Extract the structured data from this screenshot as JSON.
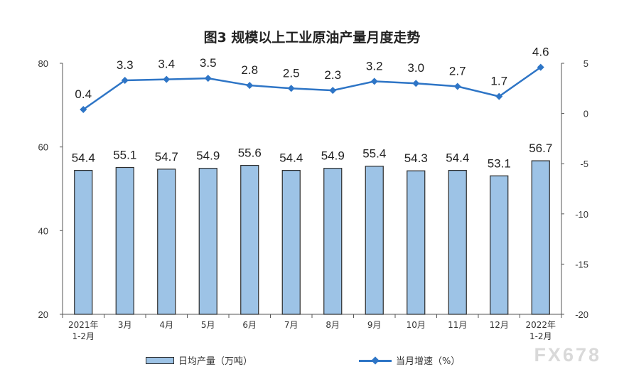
{
  "title": "图3  规模以上工业原油产量月度走势",
  "watermark": "FX678",
  "chart_data": {
    "type": "bar+line",
    "categories": [
      [
        "2021年",
        "1-2月"
      ],
      [
        "3月"
      ],
      [
        "4月"
      ],
      [
        "5月"
      ],
      [
        "6月"
      ],
      [
        "7月"
      ],
      [
        "8月"
      ],
      [
        "9月"
      ],
      [
        "10月"
      ],
      [
        "11月"
      ],
      [
        "12月"
      ],
      [
        "2022年",
        "1-2月"
      ]
    ],
    "series": [
      {
        "name": "日均产量（万吨）",
        "type": "bar",
        "axis": "left",
        "values": [
          54.4,
          55.1,
          54.7,
          54.9,
          55.6,
          54.4,
          54.9,
          55.4,
          54.3,
          54.4,
          53.1,
          56.7
        ]
      },
      {
        "name": "当月增速（%）",
        "type": "line",
        "axis": "right",
        "values": [
          0.4,
          3.3,
          3.4,
          3.5,
          2.8,
          2.5,
          2.3,
          3.2,
          3.0,
          2.7,
          1.7,
          4.6
        ]
      }
    ],
    "y_left": {
      "min": 20,
      "max": 80,
      "ticks": [
        20,
        40,
        60,
        80
      ]
    },
    "y_right": {
      "min": -20,
      "max": 5,
      "ticks": [
        5,
        0,
        -5,
        -10,
        -15,
        -20
      ]
    },
    "colors": {
      "bar_fill": "#9DC3E6",
      "bar_stroke": "#2b2b2b",
      "line": "#2E75C6"
    },
    "legend_position": "bottom"
  }
}
